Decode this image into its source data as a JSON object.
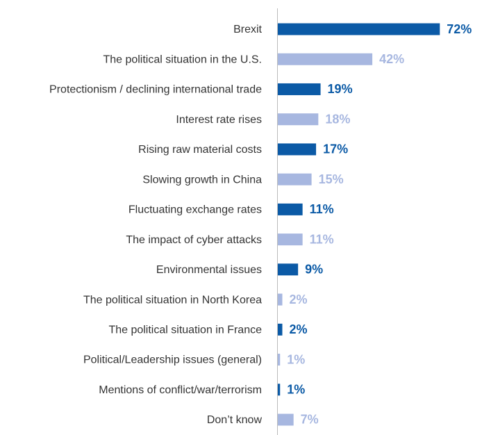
{
  "chart_data": {
    "type": "barh",
    "categories": [
      "Brexit",
      "The political situation in the U.S.",
      "Protectionism / declining international trade",
      "Interest rate rises",
      "Rising raw material costs",
      "Slowing growth in China",
      "Fluctuating exchange rates",
      "The impact of cyber attacks",
      "Environmental issues",
      "The political situation in North Korea",
      "The political situation in France",
      "Political/Leadership issues (general)",
      "Mentions of conflict/war/terrorism",
      "Don’t know"
    ],
    "values": [
      72,
      42,
      19,
      18,
      17,
      15,
      11,
      11,
      9,
      2,
      2,
      1,
      1,
      7
    ],
    "value_labels": [
      "72%",
      "42%",
      "19%",
      "18%",
      "17%",
      "15%",
      "11%",
      "11%",
      "9%",
      "2%",
      "2%",
      "1%",
      "1%",
      "7%"
    ],
    "colors": [
      "#0b5aa6",
      "#a7b7e0",
      "#0b5aa6",
      "#a7b7e0",
      "#0b5aa6",
      "#a7b7e0",
      "#0b5aa6",
      "#a7b7e0",
      "#0b5aa6",
      "#a7b7e0",
      "#0b5aa6",
      "#a7b7e0",
      "#0b5aa6",
      "#a7b7e0"
    ],
    "xlim": [
      0,
      100
    ]
  }
}
